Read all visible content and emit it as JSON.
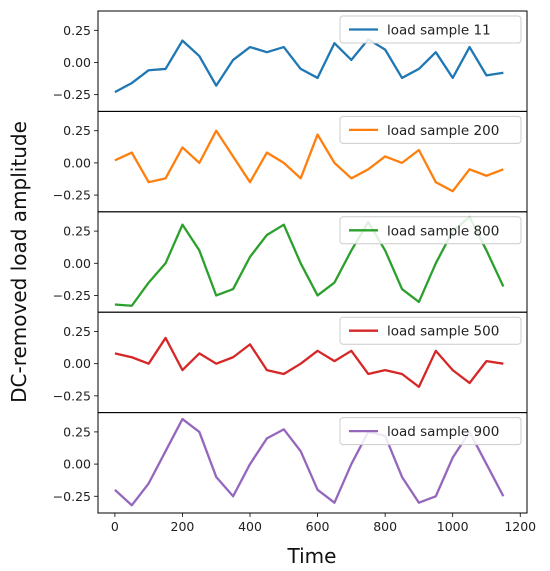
{
  "chart_data": {
    "type": "line",
    "shared_x_axis": {
      "label": "Time",
      "range": [
        -50,
        1220
      ],
      "ticks": [
        0,
        200,
        400,
        600,
        800,
        1000,
        1200
      ]
    },
    "ylabel": "DC-removed load amplitude",
    "legend_placement": "upper right",
    "grid": false,
    "panels": [
      {
        "series_name": "load sample 11",
        "color": "#1f77b4",
        "ylim": [
          -0.38,
          0.4
        ],
        "yticks": [
          0.25,
          0.0,
          -0.25
        ],
        "x": [
          0,
          50,
          100,
          150,
          200,
          250,
          300,
          350,
          400,
          450,
          500,
          550,
          600,
          650,
          700,
          750,
          800,
          850,
          900,
          950,
          1000,
          1050,
          1100,
          1150
        ],
        "y": [
          -0.23,
          -0.16,
          -0.06,
          -0.05,
          0.17,
          0.05,
          -0.18,
          0.02,
          0.12,
          0.08,
          0.12,
          -0.05,
          -0.12,
          0.15,
          0.02,
          0.18,
          0.1,
          -0.12,
          -0.05,
          0.08,
          -0.12,
          0.12,
          -0.1,
          -0.08
        ]
      },
      {
        "series_name": "load sample 200",
        "color": "#ff7f0e",
        "ylim": [
          -0.38,
          0.4
        ],
        "yticks": [
          0.25,
          0.0,
          -0.25
        ],
        "x": [
          0,
          50,
          100,
          150,
          200,
          250,
          300,
          350,
          400,
          450,
          500,
          550,
          600,
          650,
          700,
          750,
          800,
          850,
          900,
          950,
          1000,
          1050,
          1100,
          1150
        ],
        "y": [
          0.02,
          0.08,
          -0.15,
          -0.12,
          0.12,
          0.0,
          0.25,
          0.05,
          -0.15,
          0.08,
          0.0,
          -0.12,
          0.22,
          0.0,
          -0.12,
          -0.05,
          0.05,
          0.0,
          0.1,
          -0.15,
          -0.22,
          -0.05,
          -0.1,
          -0.05
        ]
      },
      {
        "series_name": "load sample 800",
        "color": "#2ca02c",
        "ylim": [
          -0.38,
          0.4
        ],
        "yticks": [
          0.25,
          0.0,
          -0.25
        ],
        "x": [
          0,
          50,
          100,
          150,
          200,
          250,
          300,
          350,
          400,
          450,
          500,
          550,
          600,
          650,
          700,
          750,
          800,
          850,
          900,
          950,
          1000,
          1050,
          1100,
          1150
        ],
        "y": [
          -0.32,
          -0.33,
          -0.15,
          0.0,
          0.3,
          0.1,
          -0.25,
          -0.2,
          0.05,
          0.22,
          0.3,
          0.0,
          -0.25,
          -0.15,
          0.1,
          0.32,
          0.1,
          -0.2,
          -0.3,
          0.0,
          0.25,
          0.36,
          0.1,
          -0.18
        ]
      },
      {
        "series_name": "load sample 500",
        "color": "#d62728",
        "ylim": [
          -0.38,
          0.4
        ],
        "yticks": [
          0.25,
          0.0,
          -0.25
        ],
        "x": [
          0,
          50,
          100,
          150,
          200,
          250,
          300,
          350,
          400,
          450,
          500,
          550,
          600,
          650,
          700,
          750,
          800,
          850,
          900,
          950,
          1000,
          1050,
          1100,
          1150
        ],
        "y": [
          0.08,
          0.05,
          0.0,
          0.2,
          -0.05,
          0.08,
          0.0,
          0.05,
          0.15,
          -0.05,
          -0.08,
          0.0,
          0.1,
          0.02,
          0.1,
          -0.08,
          -0.05,
          -0.08,
          -0.18,
          0.1,
          -0.05,
          -0.15,
          0.02,
          0.0
        ]
      },
      {
        "series_name": "load sample 900",
        "color": "#9467bd",
        "ylim": [
          -0.38,
          0.4
        ],
        "yticks": [
          0.25,
          0.0,
          -0.25
        ],
        "x": [
          0,
          50,
          100,
          150,
          200,
          250,
          300,
          350,
          400,
          450,
          500,
          550,
          600,
          650,
          700,
          750,
          800,
          850,
          900,
          950,
          1000,
          1050,
          1100,
          1150
        ],
        "y": [
          -0.2,
          -0.32,
          -0.15,
          0.1,
          0.35,
          0.25,
          -0.1,
          -0.25,
          0.0,
          0.2,
          0.27,
          0.1,
          -0.2,
          -0.3,
          0.0,
          0.25,
          0.22,
          -0.1,
          -0.3,
          -0.25,
          0.05,
          0.25,
          0.0,
          -0.25
        ]
      }
    ]
  }
}
